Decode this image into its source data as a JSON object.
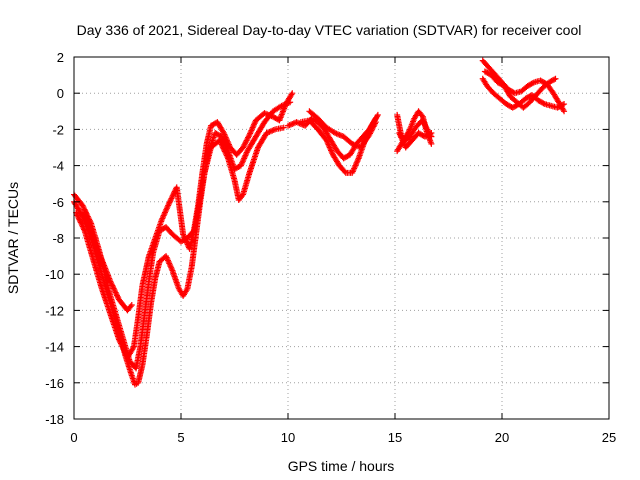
{
  "chart_data": {
    "type": "scatter",
    "title": "Day 336 of 2021, Sidereal Day-to-day VTEC variation (SDTVAR) for receiver cool",
    "xlabel": "GPS time / hours",
    "ylabel": "SDTVAR / TECUs",
    "xlim": [
      0,
      25
    ],
    "ylim": [
      -18,
      2
    ],
    "xticks": [
      0,
      5,
      10,
      15,
      20,
      25
    ],
    "yticks": [
      -18,
      -16,
      -14,
      -12,
      -10,
      -8,
      -6,
      -4,
      -2,
      0,
      2
    ],
    "xtick_labels": [
      "0",
      "5",
      "10",
      "15",
      "20",
      "25"
    ],
    "ytick_labels": [
      "-18",
      "-16",
      "-14",
      "-12",
      "-10",
      "-8",
      "-6",
      "-4",
      "-2",
      "0",
      "2"
    ],
    "grid": true,
    "marker": "plus",
    "color": "#ff0000",
    "series": [
      {
        "name": "track-1",
        "points": [
          [
            0.0,
            -6.0
          ],
          [
            0.4,
            -6.8
          ],
          [
            0.8,
            -8.0
          ],
          [
            1.2,
            -9.6
          ],
          [
            1.6,
            -11.2
          ],
          [
            2.0,
            -12.8
          ],
          [
            2.4,
            -14.5
          ],
          [
            2.7,
            -15.6
          ],
          [
            2.85,
            -16.1
          ],
          [
            3.0,
            -16.0
          ],
          [
            3.2,
            -15.0
          ],
          [
            3.4,
            -13.4
          ],
          [
            3.6,
            -11.6
          ],
          [
            3.8,
            -10.2
          ],
          [
            4.0,
            -9.3
          ],
          [
            4.3,
            -9.0
          ],
          [
            4.6,
            -9.8
          ],
          [
            4.9,
            -10.8
          ],
          [
            5.1,
            -11.2
          ],
          [
            5.3,
            -10.8
          ],
          [
            5.5,
            -9.6
          ],
          [
            5.7,
            -7.8
          ],
          [
            5.9,
            -6.0
          ],
          [
            6.1,
            -4.4
          ],
          [
            6.4,
            -3.0
          ],
          [
            6.8,
            -2.6
          ],
          [
            7.2,
            -3.6
          ],
          [
            7.5,
            -4.8
          ],
          [
            7.7,
            -5.9
          ],
          [
            7.9,
            -5.6
          ],
          [
            8.2,
            -4.4
          ],
          [
            8.6,
            -3.0
          ],
          [
            9.0,
            -2.2
          ],
          [
            9.4,
            -2.0
          ],
          [
            9.8,
            -1.9
          ]
        ]
      },
      {
        "name": "track-2",
        "points": [
          [
            0.0,
            -5.6
          ],
          [
            0.4,
            -6.2
          ],
          [
            0.8,
            -7.2
          ],
          [
            1.2,
            -8.8
          ],
          [
            1.6,
            -10.8
          ],
          [
            2.0,
            -12.4
          ],
          [
            2.3,
            -13.6
          ],
          [
            2.6,
            -14.8
          ],
          [
            2.9,
            -15.2
          ],
          [
            3.1,
            -14.0
          ],
          [
            3.3,
            -12.2
          ],
          [
            3.5,
            -10.4
          ],
          [
            3.7,
            -8.8
          ],
          [
            4.0,
            -7.6
          ],
          [
            4.3,
            -7.4
          ],
          [
            4.6,
            -7.8
          ],
          [
            5.0,
            -8.2
          ],
          [
            5.3,
            -8.0
          ],
          [
            5.6,
            -7.6
          ],
          [
            5.8,
            -6.2
          ],
          [
            6.0,
            -4.4
          ],
          [
            6.2,
            -2.8
          ],
          [
            6.4,
            -1.8
          ],
          [
            6.7,
            -1.6
          ],
          [
            7.0,
            -2.2
          ],
          [
            7.3,
            -3.0
          ],
          [
            7.6,
            -3.4
          ],
          [
            7.9,
            -3.0
          ],
          [
            8.2,
            -2.3
          ],
          [
            8.5,
            -1.5
          ],
          [
            8.9,
            -1.1
          ],
          [
            9.3,
            -1.3
          ],
          [
            9.6,
            -1.5
          ],
          [
            9.9,
            -0.6
          ],
          [
            10.2,
            0.0
          ]
        ]
      },
      {
        "name": "track-3",
        "points": [
          [
            0.1,
            -6.6
          ],
          [
            0.5,
            -7.6
          ],
          [
            0.9,
            -9.2
          ],
          [
            1.3,
            -10.8
          ],
          [
            1.7,
            -12.2
          ],
          [
            2.1,
            -13.6
          ],
          [
            2.5,
            -14.6
          ],
          [
            2.8,
            -14.0
          ],
          [
            3.0,
            -12.4
          ],
          [
            3.2,
            -10.6
          ],
          [
            3.5,
            -9.0
          ],
          [
            3.8,
            -8.0
          ],
          [
            4.1,
            -7.0
          ],
          [
            4.4,
            -6.2
          ],
          [
            4.8,
            -5.2
          ],
          [
            5.1,
            -7.8
          ],
          [
            5.4,
            -8.6
          ],
          [
            5.7,
            -7.2
          ],
          [
            6.0,
            -5.0
          ],
          [
            6.3,
            -3.2
          ],
          [
            6.6,
            -2.2
          ],
          [
            6.9,
            -2.4
          ],
          [
            7.2,
            -3.2
          ],
          [
            7.5,
            -4.2
          ],
          [
            7.8,
            -4.0
          ],
          [
            8.1,
            -3.2
          ],
          [
            8.5,
            -2.4
          ],
          [
            8.9,
            -1.6
          ],
          [
            9.3,
            -1.0
          ],
          [
            9.7,
            -0.7
          ],
          [
            10.1,
            -0.5
          ]
        ]
      },
      {
        "name": "track-4",
        "points": [
          [
            0.5,
            -6.5
          ],
          [
            0.9,
            -8.0
          ],
          [
            1.3,
            -9.2
          ],
          [
            1.7,
            -10.4
          ],
          [
            2.1,
            -11.4
          ],
          [
            2.5,
            -12.0
          ],
          [
            2.7,
            -11.7
          ]
        ]
      },
      {
        "name": "track-5",
        "points": [
          [
            10.0,
            -1.8
          ],
          [
            10.4,
            -1.6
          ],
          [
            10.8,
            -1.8
          ],
          [
            11.1,
            -1.4
          ],
          [
            11.4,
            -1.6
          ],
          [
            11.7,
            -2.0
          ],
          [
            12.0,
            -2.6
          ],
          [
            12.3,
            -3.2
          ],
          [
            12.6,
            -3.6
          ],
          [
            12.9,
            -3.4
          ],
          [
            13.2,
            -2.8
          ],
          [
            13.5,
            -2.4
          ],
          [
            13.8,
            -2.0
          ],
          [
            14.1,
            -1.4
          ]
        ]
      },
      {
        "name": "track-6",
        "points": [
          [
            10.6,
            -1.6
          ],
          [
            11.0,
            -1.5
          ],
          [
            11.4,
            -2.0
          ],
          [
            11.8,
            -2.6
          ],
          [
            12.1,
            -3.4
          ],
          [
            12.4,
            -4.0
          ],
          [
            12.7,
            -4.4
          ],
          [
            13.0,
            -4.4
          ],
          [
            13.3,
            -3.6
          ],
          [
            13.6,
            -2.6
          ],
          [
            13.9,
            -1.8
          ],
          [
            14.2,
            -1.2
          ]
        ]
      },
      {
        "name": "track-7",
        "points": [
          [
            11.0,
            -1.0
          ],
          [
            11.4,
            -1.4
          ],
          [
            11.8,
            -1.9
          ],
          [
            12.2,
            -2.2
          ],
          [
            12.6,
            -2.4
          ],
          [
            13.0,
            -2.8
          ],
          [
            13.4,
            -3.0
          ],
          [
            13.8,
            -2.3
          ],
          [
            14.1,
            -1.6
          ]
        ]
      },
      {
        "name": "track-8",
        "points": [
          [
            15.1,
            -1.2
          ],
          [
            15.2,
            -1.8
          ],
          [
            15.3,
            -2.4
          ],
          [
            15.5,
            -2.6
          ],
          [
            15.7,
            -2.4
          ],
          [
            15.9,
            -2.0
          ],
          [
            16.1,
            -1.7
          ],
          [
            16.3,
            -1.5
          ],
          [
            16.5,
            -2.0
          ],
          [
            16.7,
            -2.4
          ]
        ]
      },
      {
        "name": "track-9",
        "points": [
          [
            15.1,
            -3.2
          ],
          [
            15.3,
            -2.8
          ],
          [
            15.5,
            -2.4
          ],
          [
            15.7,
            -2.0
          ],
          [
            15.9,
            -1.4
          ],
          [
            16.1,
            -1.0
          ],
          [
            16.3,
            -1.3
          ],
          [
            16.5,
            -2.2
          ],
          [
            16.7,
            -2.8
          ]
        ]
      },
      {
        "name": "track-10",
        "points": [
          [
            15.2,
            -2.2
          ],
          [
            15.5,
            -3.0
          ],
          [
            15.8,
            -2.6
          ],
          [
            16.1,
            -2.2
          ],
          [
            16.4,
            -2.4
          ],
          [
            16.7,
            -2.2
          ]
        ]
      },
      {
        "name": "track-11",
        "points": [
          [
            19.1,
            1.8
          ],
          [
            19.4,
            1.4
          ],
          [
            19.7,
            1.0
          ],
          [
            20.0,
            0.6
          ],
          [
            20.3,
            0.2
          ],
          [
            20.6,
            0.0
          ],
          [
            20.9,
            0.1
          ],
          [
            21.2,
            0.4
          ],
          [
            21.5,
            0.6
          ],
          [
            21.8,
            0.7
          ],
          [
            22.1,
            0.5
          ],
          [
            22.4,
            0.0
          ],
          [
            22.7,
            -0.6
          ],
          [
            22.9,
            -1.0
          ]
        ]
      },
      {
        "name": "track-12",
        "points": [
          [
            19.1,
            0.8
          ],
          [
            19.3,
            0.4
          ],
          [
            19.6,
            0.0
          ],
          [
            19.9,
            -0.3
          ],
          [
            20.2,
            -0.6
          ],
          [
            20.5,
            -0.8
          ],
          [
            20.8,
            -0.6
          ],
          [
            21.1,
            -0.3
          ],
          [
            21.4,
            -0.1
          ],
          [
            21.7,
            -0.4
          ],
          [
            22.0,
            -0.6
          ],
          [
            22.3,
            -0.7
          ],
          [
            22.6,
            -0.8
          ],
          [
            22.9,
            -0.6
          ]
        ]
      },
      {
        "name": "track-13",
        "points": [
          [
            19.2,
            1.2
          ],
          [
            19.5,
            1.0
          ],
          [
            19.8,
            0.6
          ],
          [
            20.1,
            0.4
          ],
          [
            20.4,
            -0.2
          ],
          [
            20.7,
            -0.5
          ],
          [
            21.0,
            -0.8
          ],
          [
            21.3,
            -0.5
          ],
          [
            21.6,
            -0.1
          ],
          [
            21.9,
            0.3
          ],
          [
            22.2,
            0.6
          ],
          [
            22.5,
            0.8
          ]
        ]
      }
    ]
  }
}
